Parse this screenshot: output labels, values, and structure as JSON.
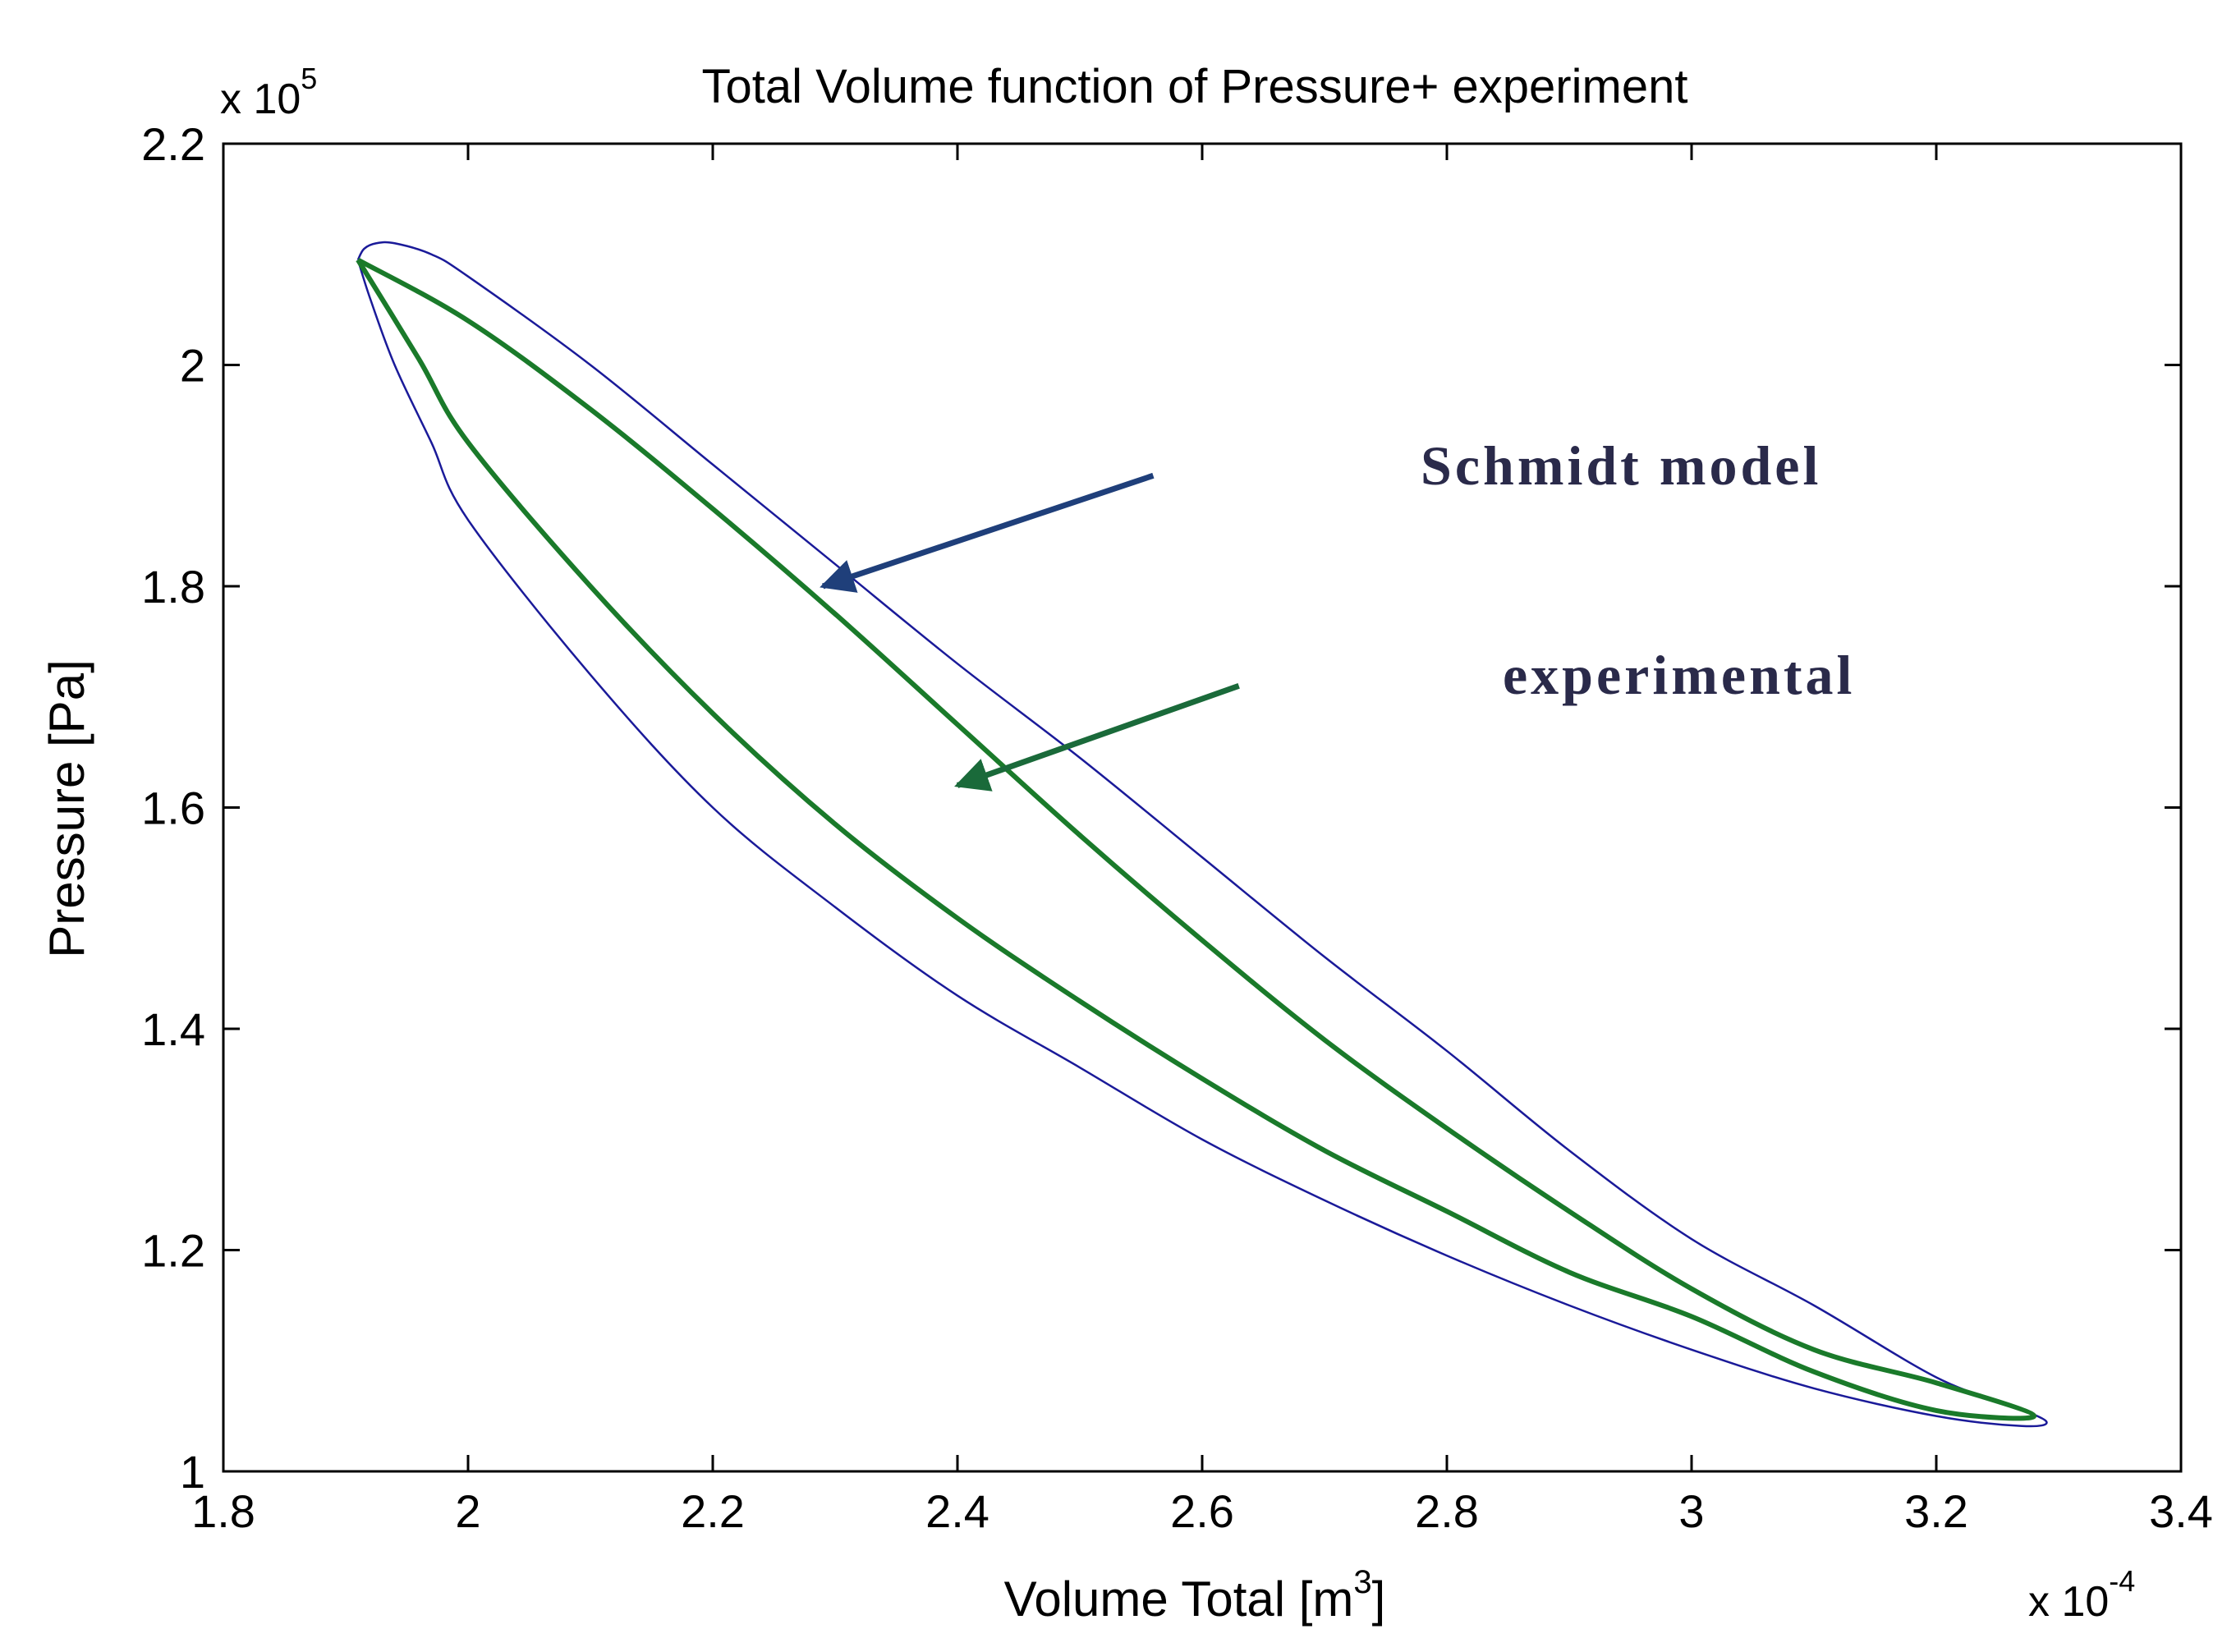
{
  "chart_data": {
    "type": "line",
    "title": "Total Volume function of Pressure+ experiment",
    "xlabel": "Volume Total [m",
    "xlabel_sup": "3",
    "xlabel_close": "]",
    "ylabel": "Pressure [Pa]",
    "x_multiplier": {
      "prefix": "x 10",
      "exponent": "-4"
    },
    "y_multiplier": {
      "prefix": "x 10",
      "exponent": "5"
    },
    "xlim": [
      1.8,
      3.4
    ],
    "ylim": [
      1.0,
      2.2
    ],
    "x_ticks": [
      1.8,
      2.0,
      2.2,
      2.4,
      2.6,
      2.8,
      3.0,
      3.2,
      3.4
    ],
    "x_tick_labels": [
      "1.8",
      "2",
      "2.2",
      "2.4",
      "2.6",
      "2.8",
      "3",
      "3.2",
      "3.4"
    ],
    "y_ticks": [
      1.0,
      1.2,
      1.4,
      1.6,
      1.8,
      2.0,
      2.2
    ],
    "y_tick_labels": [
      "1",
      "1.2",
      "1.4",
      "1.6",
      "1.8",
      "2",
      "2.2"
    ],
    "grid": false,
    "colors": {
      "schmidt": "#1a1a99",
      "experimental": "#1a7a2a",
      "arrow_schmidt": "#1f3f7a",
      "arrow_experimental": "#1a6a3a",
      "annotation_text": "#2a2a4a",
      "axis": "#000000"
    },
    "series": [
      {
        "name": "Schmidt model",
        "closed": true,
        "x": [
          1.91,
          1.915,
          1.925,
          1.94,
          1.97,
          2.0,
          2.1,
          2.2,
          2.3,
          2.4,
          2.5,
          2.6,
          2.7,
          2.8,
          2.9,
          3.0,
          3.1,
          3.2,
          3.26,
          3.29,
          3.27,
          3.2,
          3.1,
          3.0,
          2.9,
          2.8,
          2.7,
          2.6,
          2.5,
          2.4,
          2.3,
          2.2,
          2.1,
          2.0,
          1.97,
          1.94,
          1.92
        ],
        "y": [
          2.095,
          2.105,
          2.11,
          2.11,
          2.1,
          2.08,
          2.0,
          1.91,
          1.82,
          1.73,
          1.645,
          1.555,
          1.465,
          1.38,
          1.29,
          1.21,
          1.15,
          1.085,
          1.06,
          1.045,
          1.041,
          1.05,
          1.075,
          1.11,
          1.15,
          1.195,
          1.245,
          1.3,
          1.365,
          1.43,
          1.51,
          1.6,
          1.72,
          1.86,
          1.93,
          2.0,
          2.06
        ]
      },
      {
        "name": "experimental",
        "closed": true,
        "x": [
          1.91,
          2.0,
          2.1,
          2.2,
          2.3,
          2.4,
          2.5,
          2.6,
          2.7,
          2.8,
          2.9,
          3.0,
          3.1,
          3.2,
          3.28,
          3.2,
          3.1,
          3.0,
          2.9,
          2.8,
          2.7,
          2.6,
          2.5,
          2.4,
          2.3,
          2.2,
          2.1,
          2.0,
          1.96
        ],
        "y": [
          2.095,
          2.04,
          1.96,
          1.87,
          1.775,
          1.675,
          1.575,
          1.48,
          1.39,
          1.31,
          1.235,
          1.165,
          1.11,
          1.08,
          1.05,
          1.055,
          1.09,
          1.14,
          1.18,
          1.235,
          1.29,
          1.355,
          1.425,
          1.5,
          1.585,
          1.685,
          1.8,
          1.93,
          2.005
        ]
      }
    ],
    "annotations": [
      {
        "text": "Schmidt model",
        "arrow_from": [
          2.56,
          1.9
        ],
        "arrow_to": [
          2.29,
          1.8
        ]
      },
      {
        "text": "experimental",
        "arrow_from": [
          2.63,
          1.71
        ],
        "arrow_to": [
          2.4,
          1.62
        ]
      }
    ]
  }
}
